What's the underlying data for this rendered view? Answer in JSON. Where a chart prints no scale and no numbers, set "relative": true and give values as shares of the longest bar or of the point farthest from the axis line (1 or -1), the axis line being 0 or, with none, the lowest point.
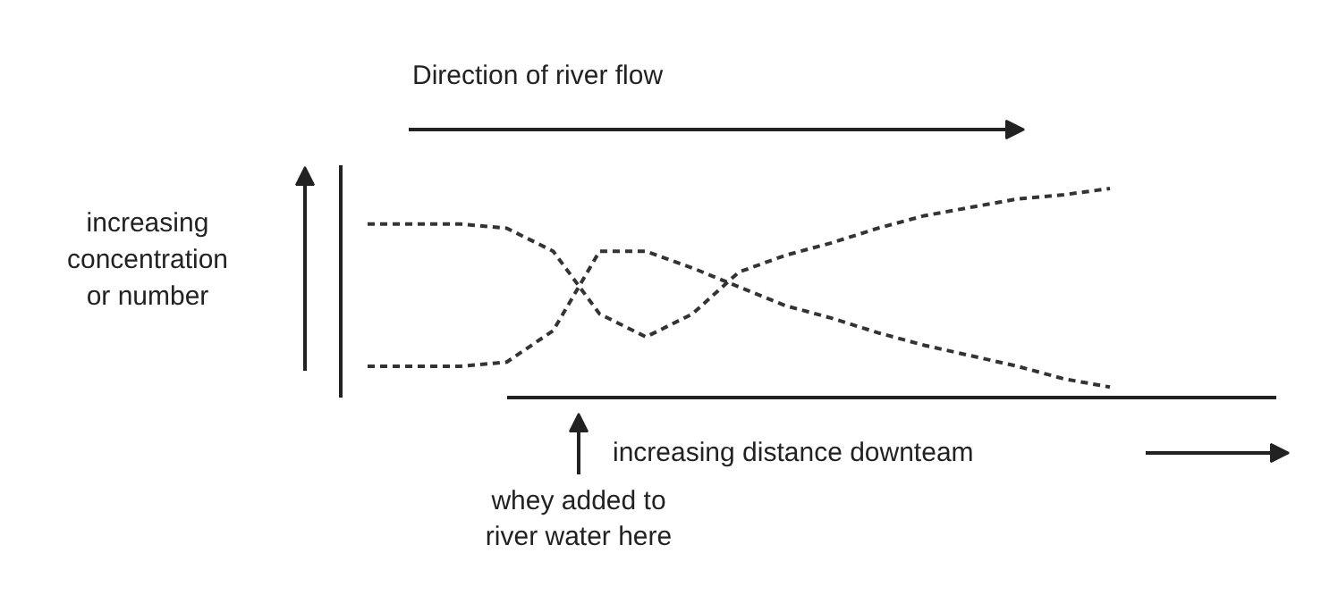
{
  "chart_data": {
    "type": "line",
    "relative": true,
    "title": "Direction of river flow",
    "xlabel": "increasing distance downteam",
    "ylabel": "increasing\nconcentration\nor number",
    "annotations": [
      "whey added to\nriver water here"
    ],
    "categories": [
      null,
      null,
      null,
      null,
      null,
      null,
      null,
      null,
      null,
      null,
      null,
      null,
      null,
      null,
      null,
      null,
      null
    ],
    "line_style": "dashed",
    "marker": "none",
    "series": [
      {
        "color": "#333333",
        "values": [
          0.83,
          0.83,
          0.83,
          0.81,
          0.7,
          0.4,
          0.29,
          0.4,
          0.6,
          0.68,
          0.74,
          0.81,
          0.87,
          0.91,
          0.95,
          0.97,
          1.0
        ]
      },
      {
        "color": "#333333",
        "values": [
          0.15,
          0.15,
          0.15,
          0.17,
          0.32,
          0.7,
          0.7,
          0.62,
          0.53,
          0.44,
          0.38,
          0.31,
          0.25,
          0.2,
          0.15,
          0.09,
          0.05
        ]
      }
    ]
  }
}
